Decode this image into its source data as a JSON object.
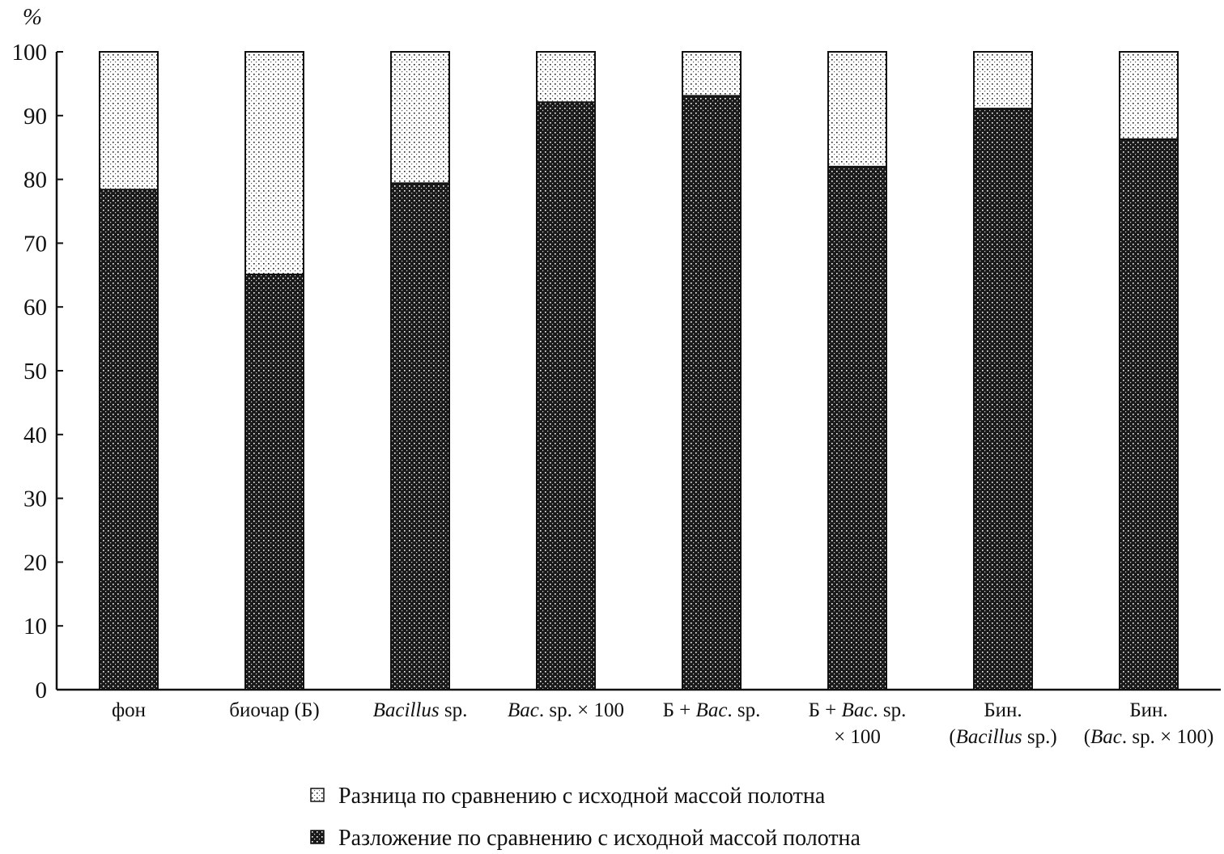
{
  "chart_data": {
    "type": "bar",
    "stacked": true,
    "ylabel": "%",
    "ylim": [
      0,
      100
    ],
    "yticks": [
      0,
      10,
      20,
      30,
      40,
      50,
      60,
      70,
      80,
      90,
      100
    ],
    "grid": false,
    "legend_position": "bottom",
    "categories": [
      [
        [
          {
            "t": "фон"
          }
        ]
      ],
      [
        [
          {
            "t": "биочар (Б)"
          }
        ]
      ],
      [
        [
          {
            "t": "Bacillus",
            "i": true
          },
          {
            "t": " sp."
          }
        ]
      ],
      [
        [
          {
            "t": "Bac",
            "i": true
          },
          {
            "t": ". sp. × 100"
          }
        ]
      ],
      [
        [
          {
            "t": "Б + "
          },
          {
            "t": "Bac",
            "i": true
          },
          {
            "t": ". sp."
          }
        ]
      ],
      [
        [
          {
            "t": "Б + "
          },
          {
            "t": "Bac",
            "i": true
          },
          {
            "t": ". sp."
          }
        ],
        [
          {
            "t": "× 100"
          }
        ]
      ],
      [
        [
          {
            "t": "Бин."
          }
        ],
        [
          {
            "t": "("
          },
          {
            "t": "Bacillus",
            "i": true
          },
          {
            "t": " sp.)"
          }
        ]
      ],
      [
        [
          {
            "t": "Бин."
          }
        ],
        [
          {
            "t": "("
          },
          {
            "t": "Bac",
            "i": true
          },
          {
            "t": ". sp. × 100)"
          }
        ]
      ]
    ],
    "series": [
      {
        "name": "Разложение по сравнению с исходной массой полотна",
        "pattern": "dark-dotted",
        "values": [
          78.4,
          65.1,
          79.4,
          92.1,
          93.1,
          82.0,
          91.1,
          86.3
        ]
      },
      {
        "name": "Разница по сравнению с исходной массой полотна",
        "pattern": "light-dotted",
        "values": [
          21.6,
          34.9,
          20.6,
          7.9,
          6.9,
          18.0,
          8.9,
          13.7
        ]
      }
    ],
    "legend_order": [
      1,
      0
    ],
    "colors": {
      "dark": "#1a1a1a",
      "light": "#ffffff",
      "axis": "#111111"
    }
  }
}
